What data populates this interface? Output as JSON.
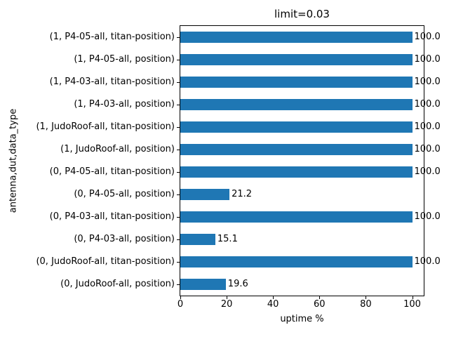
{
  "chart_data": {
    "type": "bar",
    "orientation": "horizontal",
    "title": "limit=0.03",
    "xlabel": "uptime %",
    "ylabel": "antenna,dut,data_type",
    "categories": [
      "(1, P4-05-all, titan-position)",
      "(1, P4-05-all, position)",
      "(1, P4-03-all, titan-position)",
      "(1, P4-03-all, position)",
      "(1, JudoRoof-all, titan-position)",
      "(1, JudoRoof-all, position)",
      "(0, P4-05-all, titan-position)",
      "(0, P4-05-all, position)",
      "(0, P4-03-all, titan-position)",
      "(0, P4-03-all, position)",
      "(0, JudoRoof-all, titan-position)",
      "(0, JudoRoof-all, position)"
    ],
    "values": [
      100.0,
      100.0,
      100.0,
      100.0,
      100.0,
      100.0,
      100.0,
      21.2,
      100.0,
      15.1,
      100.0,
      19.6
    ],
    "value_labels": [
      "100.0",
      "100.0",
      "100.0",
      "100.0",
      "100.0",
      "100.0",
      "100.0",
      "21.2",
      "100.0",
      "15.1",
      "100.0",
      "19.6"
    ],
    "xlim": [
      0,
      105
    ],
    "xticks": [
      0,
      20,
      40,
      60,
      80,
      100
    ],
    "xticklabels": [
      "0",
      "20",
      "40",
      "60",
      "80",
      "100"
    ],
    "bar_color": "#1f77b4",
    "spine_color": "#000000",
    "grid": false,
    "legend": false,
    "category_order": "top-to-bottom"
  }
}
